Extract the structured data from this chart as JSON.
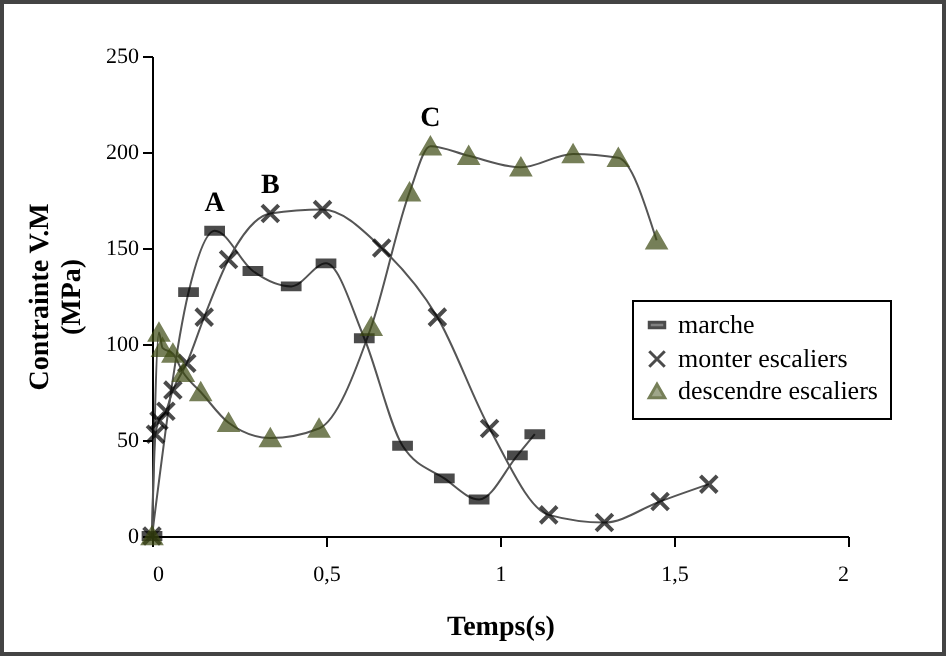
{
  "chart_data": {
    "type": "line",
    "xlabel": "Temps(s)",
    "ylabel": "Contrainte V.M\n(MPa)",
    "xlim": [
      0,
      2
    ],
    "xticks": [
      0,
      {
        "value": 0.5,
        "label": "0,5"
      },
      1,
      {
        "value": 1.5,
        "label": "1,5"
      },
      2
    ],
    "ylim": [
      0,
      250
    ],
    "yticks": [
      0,
      50,
      100,
      150,
      200,
      250
    ],
    "legend": "right",
    "grid": false,
    "line_style": "solid",
    "annotations": [
      {
        "text": "A",
        "x": 0.18,
        "y": 159
      },
      {
        "text": "B",
        "x": 0.34,
        "y": 168
      },
      {
        "text": "C",
        "x": 0.8,
        "y": 203
      }
    ],
    "series": [
      {
        "name": "marche",
        "color": "#000000",
        "marker": "square",
        "x": [
          0,
          0.105,
          0.18,
          0.29,
          0.4,
          0.5,
          0.61,
          0.72,
          0.84,
          0.94,
          1.05,
          1.1
        ],
        "values": [
          0,
          127,
          159,
          138,
          130,
          142,
          103,
          47,
          30,
          19,
          42,
          53
        ]
      },
      {
        "name": "monter escaliers",
        "color": "#000000",
        "marker": "cross",
        "x": [
          0,
          0.01,
          0.02,
          0.04,
          0.06,
          0.1,
          0.15,
          0.22,
          0.34,
          0.49,
          0.66,
          0.82,
          0.97,
          1.14,
          1.3,
          1.46,
          1.6
        ],
        "values": [
          0,
          53,
          60,
          65,
          76,
          90,
          114,
          144,
          168,
          170,
          150,
          114,
          56,
          11,
          7,
          18,
          27
        ]
      },
      {
        "name": "descendre escaliers",
        "color": "#3d4a12",
        "marker": "triangle",
        "x": [
          0,
          0.02,
          0.03,
          0.06,
          0.09,
          0.14,
          0.22,
          0.34,
          0.48,
          0.63,
          0.74,
          0.8,
          0.91,
          1.06,
          1.21,
          1.34,
          1.45
        ],
        "values": [
          0,
          106,
          98,
          95,
          85,
          75,
          59,
          51,
          56,
          109,
          179,
          203,
          198,
          192,
          199,
          197,
          154
        ]
      }
    ]
  }
}
